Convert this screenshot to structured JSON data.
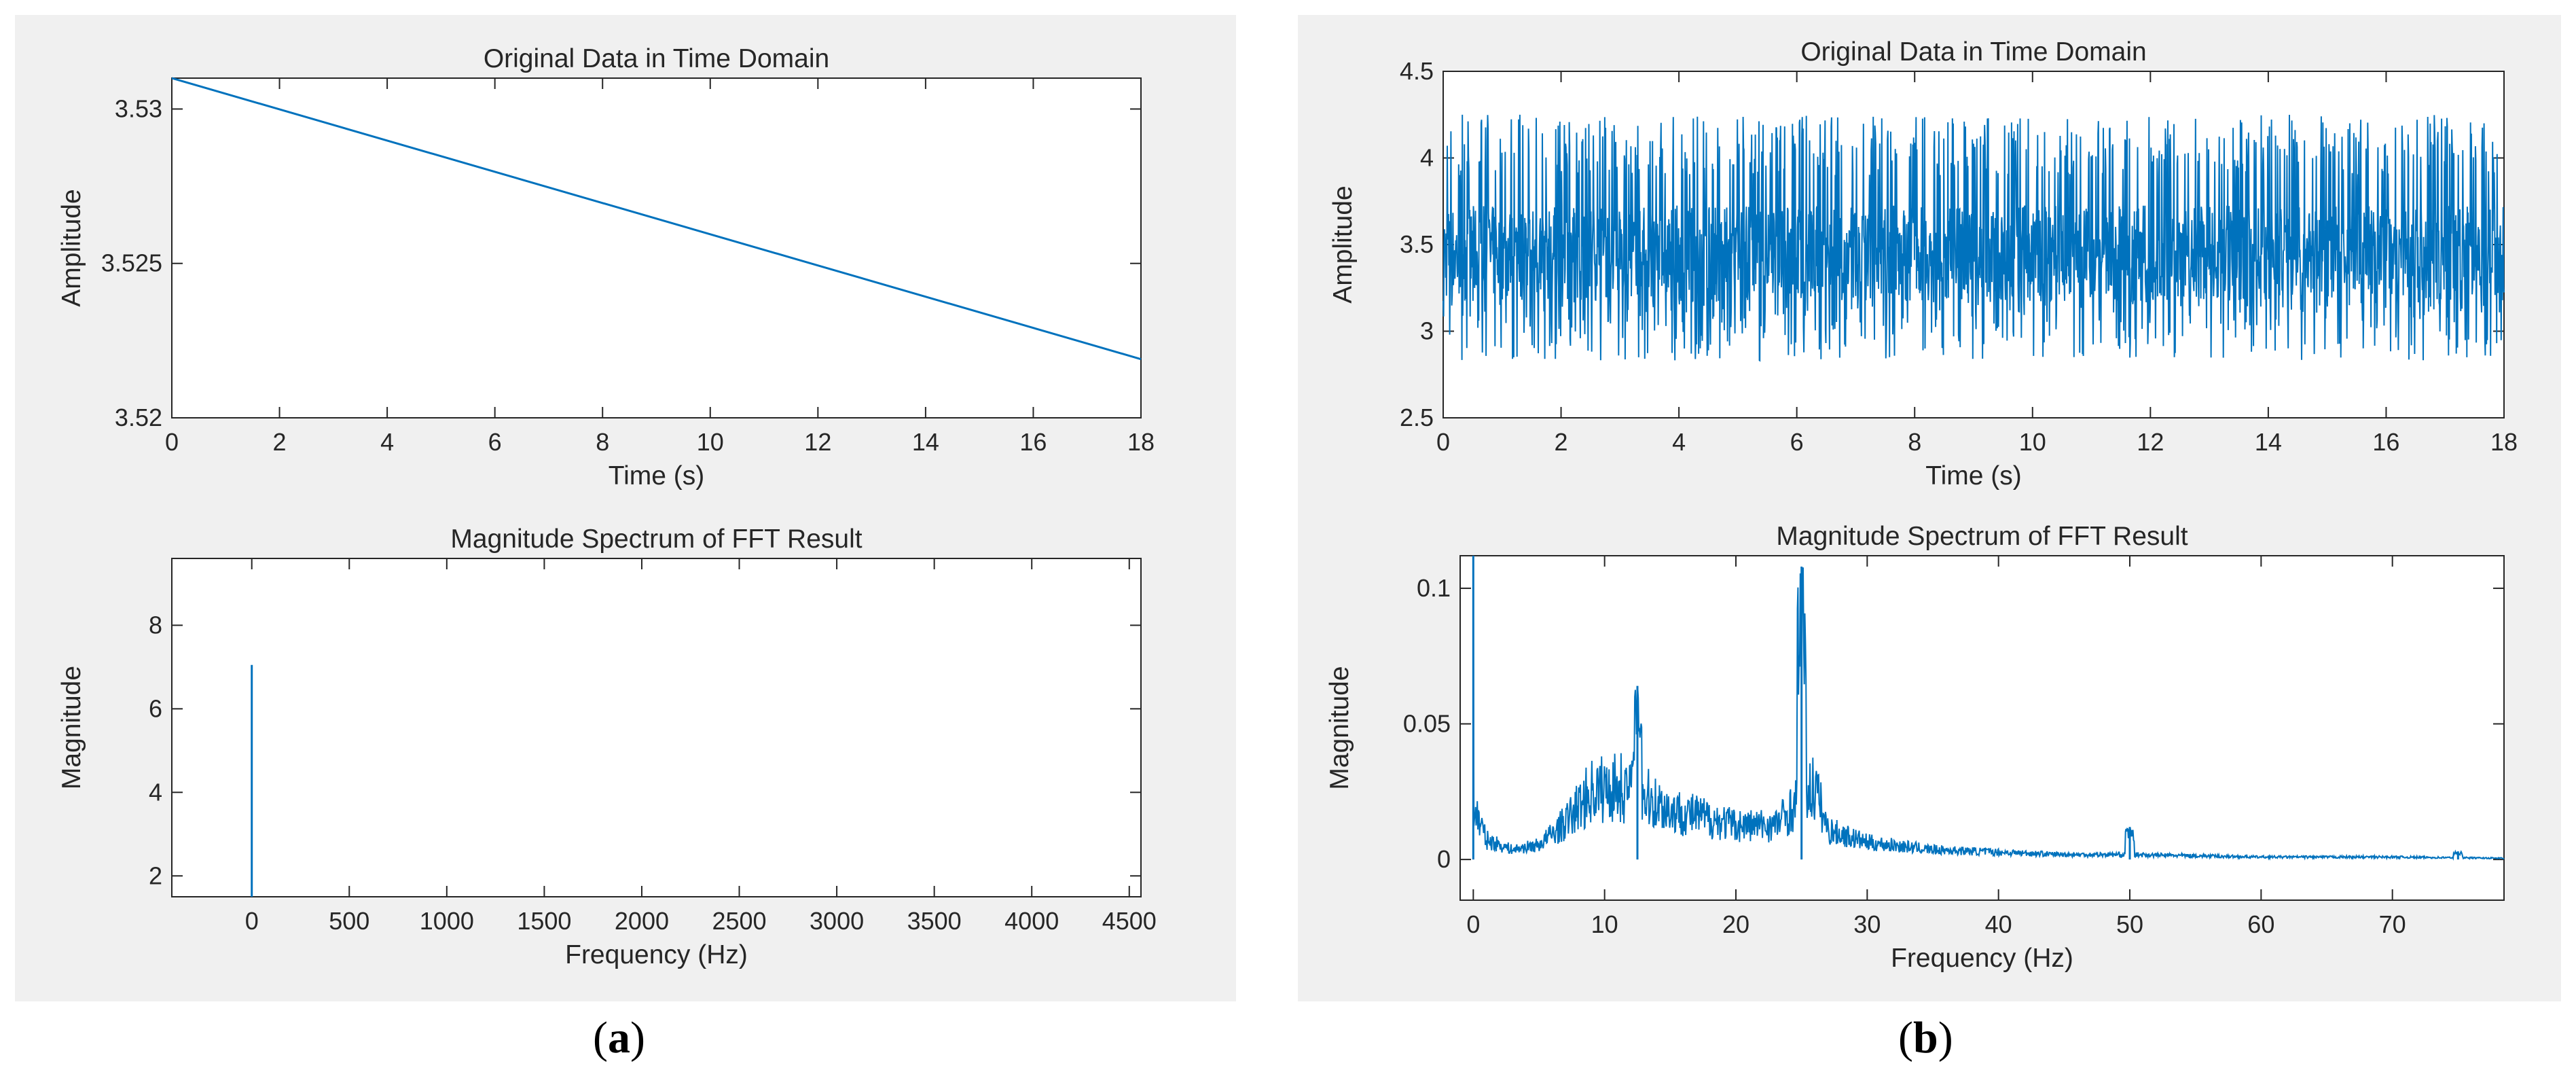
{
  "colors": {
    "line": "#0072BD",
    "panel": "#f0f0f0",
    "axes": "#262626"
  },
  "panels": [
    {
      "id": "a",
      "caption_open": "(",
      "caption_letter": "a",
      "caption_close": ")"
    },
    {
      "id": "b",
      "caption_open": "(",
      "caption_letter": "b",
      "caption_close": ")"
    }
  ],
  "chart_data": [
    {
      "panel": "a",
      "type": "line",
      "title": "Original Data in Time Domain",
      "xlabel": "Time (s)",
      "ylabel": "Amplitude",
      "xlim": [
        0,
        18
      ],
      "ylim": [
        3.52,
        3.531
      ],
      "xticks": [
        0,
        2,
        4,
        6,
        8,
        10,
        12,
        14,
        16,
        18
      ],
      "xticklabels": [
        "0",
        "2",
        "4",
        "6",
        "8",
        "10",
        "12",
        "14",
        "16",
        "18"
      ],
      "yticks": [
        3.52,
        3.525,
        3.53
      ],
      "yticklabels": [
        "3.52",
        "3.525",
        "3.53"
      ],
      "x": [
        0,
        18
      ],
      "y": [
        3.531,
        3.5219
      ]
    },
    {
      "panel": "a",
      "type": "line",
      "title": "Magnitude Spectrum of FFT Result",
      "xlabel": "Frequency (Hz)",
      "ylabel": "Magnitude",
      "xlim": [
        -410,
        4560
      ],
      "ylim": [
        1.5,
        9.6
      ],
      "xticks": [
        0,
        500,
        1000,
        1500,
        2000,
        2500,
        3000,
        3500,
        4000,
        4500
      ],
      "xticklabels": [
        "0",
        "500",
        "1000",
        "1500",
        "2000",
        "2500",
        "3000",
        "3500",
        "4000",
        "4500"
      ],
      "yticks": [
        2,
        4,
        6,
        8
      ],
      "yticklabels": [
        "2",
        "4",
        "6",
        "8"
      ],
      "x": [
        0,
        0
      ],
      "y": [
        1.5,
        7.05
      ]
    },
    {
      "panel": "b",
      "type": "line",
      "title": "Original Data in Time Domain",
      "xlabel": "Time (s)",
      "ylabel": "Amplitude",
      "xlim": [
        0,
        18
      ],
      "ylim": [
        2.5,
        4.5
      ],
      "xticks": [
        0,
        2,
        4,
        6,
        8,
        10,
        12,
        14,
        16,
        18
      ],
      "xticklabels": [
        "0",
        "2",
        "4",
        "6",
        "8",
        "10",
        "12",
        "14",
        "16",
        "18"
      ],
      "yticks": [
        2.5,
        3,
        3.5,
        4,
        4.5
      ],
      "yticklabels": [
        "2.5",
        "3",
        "3.5",
        "4",
        "4.5"
      ],
      "signal": {
        "mean": 3.45,
        "min": 2.78,
        "max": 4.3,
        "duration_s": 18,
        "description": "dense oscillating signal"
      }
    },
    {
      "panel": "b",
      "type": "line",
      "title": "Magnitude Spectrum of FFT Result",
      "xlabel": "Frequency (Hz)",
      "ylabel": "Magnitude",
      "xlim": [
        -1,
        78.5
      ],
      "ylim": [
        -0.015,
        0.112
      ],
      "xticks": [
        0,
        10,
        20,
        30,
        40,
        50,
        60,
        70
      ],
      "xticklabels": [
        "0",
        "10",
        "20",
        "30",
        "40",
        "50",
        "60",
        "70"
      ],
      "yticks": [
        0,
        0.05,
        0.1
      ],
      "yticklabels": [
        "0",
        "0.05",
        "0.1"
      ],
      "peaks": [
        {
          "f": 0,
          "mag": 0.112
        },
        {
          "f": 12.5,
          "mag": 0.064
        },
        {
          "f": 25,
          "mag": 0.108
        },
        {
          "f": 50,
          "mag": 0.012
        },
        {
          "f": 75,
          "mag": 0.003
        }
      ],
      "envelope": [
        [
          0.3,
          0.018
        ],
        [
          1,
          0.008
        ],
        [
          3,
          0.004
        ],
        [
          5,
          0.006
        ],
        [
          7,
          0.015
        ],
        [
          9,
          0.028
        ],
        [
          11,
          0.03
        ],
        [
          13,
          0.026
        ],
        [
          15,
          0.02
        ],
        [
          17,
          0.018
        ],
        [
          20,
          0.014
        ],
        [
          23,
          0.014
        ],
        [
          26,
          0.03
        ],
        [
          27,
          0.012
        ],
        [
          30,
          0.007
        ],
        [
          35,
          0.004
        ],
        [
          40,
          0.003
        ],
        [
          45,
          0.002
        ],
        [
          50,
          0.002
        ],
        [
          60,
          0.001
        ],
        [
          70,
          0.001
        ],
        [
          78.5,
          0.0005
        ]
      ]
    }
  ]
}
